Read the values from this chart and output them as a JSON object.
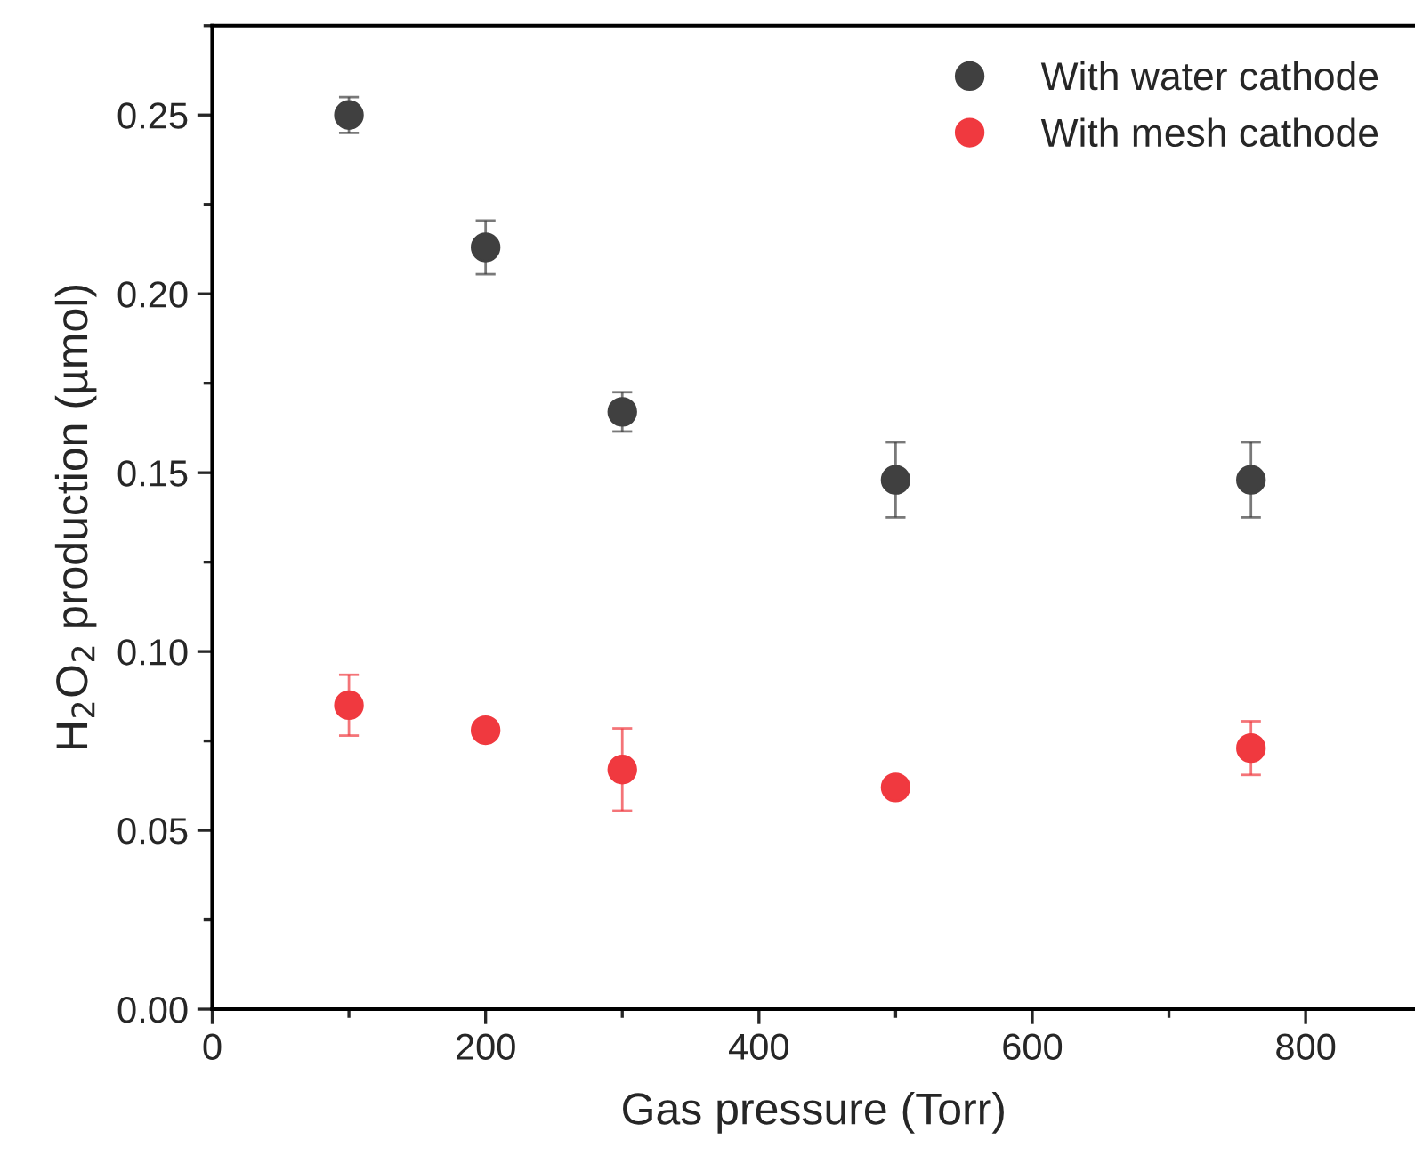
{
  "chart_data": {
    "type": "scatter",
    "xlabel": "Gas pressure (Torr)",
    "ylabel": "H$_{2}$O$_{2}$ production (µmol)",
    "x": [
      100,
      200,
      300,
      500,
      760
    ],
    "series": [
      {
        "name": "With water cathode",
        "color": "#404040",
        "values": [
          0.25,
          0.213,
          0.167,
          0.148,
          0.148
        ],
        "errors": [
          0.005,
          0.0075,
          0.0055,
          0.0105,
          0.0105
        ]
      },
      {
        "name": "With mesh cathode",
        "color": "#f0393f",
        "values": [
          0.085,
          0.078,
          0.067,
          0.062,
          0.073
        ],
        "errors": [
          0.0085,
          0.002,
          0.0115,
          0.002,
          0.0075
        ]
      }
    ],
    "xlim": [
      0,
      880
    ],
    "xticks": [
      0,
      200,
      400,
      600,
      800
    ],
    "ylim": [
      0,
      0.275
    ],
    "yticks": [
      {
        "value": 0,
        "label": "0.00"
      },
      {
        "value": 0.05,
        "label": "0.05"
      },
      {
        "value": 0.1,
        "label": "0.10"
      },
      {
        "value": 0.15,
        "label": "0.15"
      },
      {
        "value": 0.2,
        "label": "0.20"
      },
      {
        "value": 0.25,
        "label": "0.25"
      }
    ],
    "marker": "circle",
    "legend": "top right",
    "grid": false
  }
}
